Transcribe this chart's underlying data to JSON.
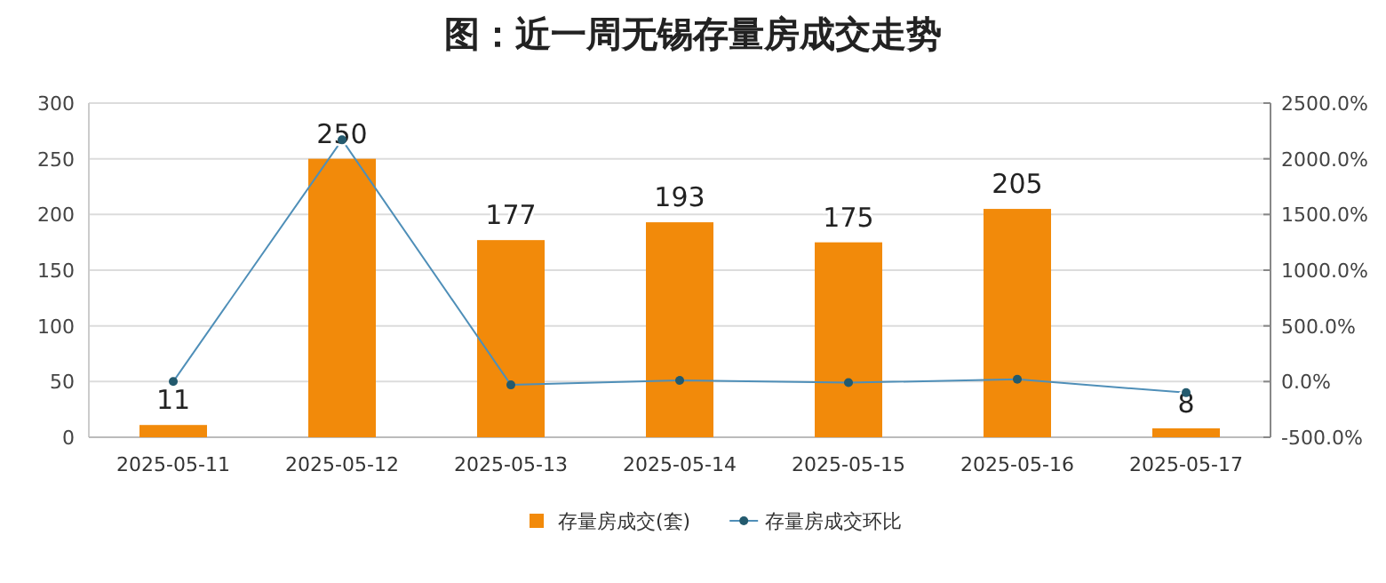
{
  "chart_data": {
    "type": "bar",
    "title": "图：近一周无锡存量房成交走势",
    "categories": [
      "2025-05-11",
      "2025-05-12",
      "2025-05-13",
      "2025-05-14",
      "2025-05-15",
      "2025-05-16",
      "2025-05-17"
    ],
    "series": [
      {
        "name": "存量房成交(套)",
        "color": "#f28a0a",
        "values": [
          11,
          250,
          177,
          193,
          175,
          205,
          8
        ],
        "value_labels": [
          "11",
          "250",
          "177",
          "193",
          "175",
          "205",
          "8"
        ]
      },
      {
        "name": "存量房成交环比",
        "type": "line",
        "axis": "y2",
        "color": "#4f8fb8",
        "marker": "circle",
        "values": [
          0,
          2170,
          -30,
          10,
          -10,
          20,
          -100
        ]
      }
    ],
    "ylim": [
      0,
      300
    ],
    "yticks": [
      0,
      50,
      100,
      150,
      200,
      250,
      300
    ],
    "y2lim": [
      -500,
      2500
    ],
    "y2ticks": [
      {
        "value": -500,
        "label": "-500.0%"
      },
      {
        "value": 0,
        "label": "0.0%"
      },
      {
        "value": 500,
        "label": "500.0%"
      },
      {
        "value": 1000,
        "label": "1000.0%"
      },
      {
        "value": 1500,
        "label": "1500.0%"
      },
      {
        "value": 2000,
        "label": "2000.0%"
      },
      {
        "value": 2500,
        "label": "2500.0%"
      }
    ],
    "grid": "y",
    "legend": "bottom"
  }
}
